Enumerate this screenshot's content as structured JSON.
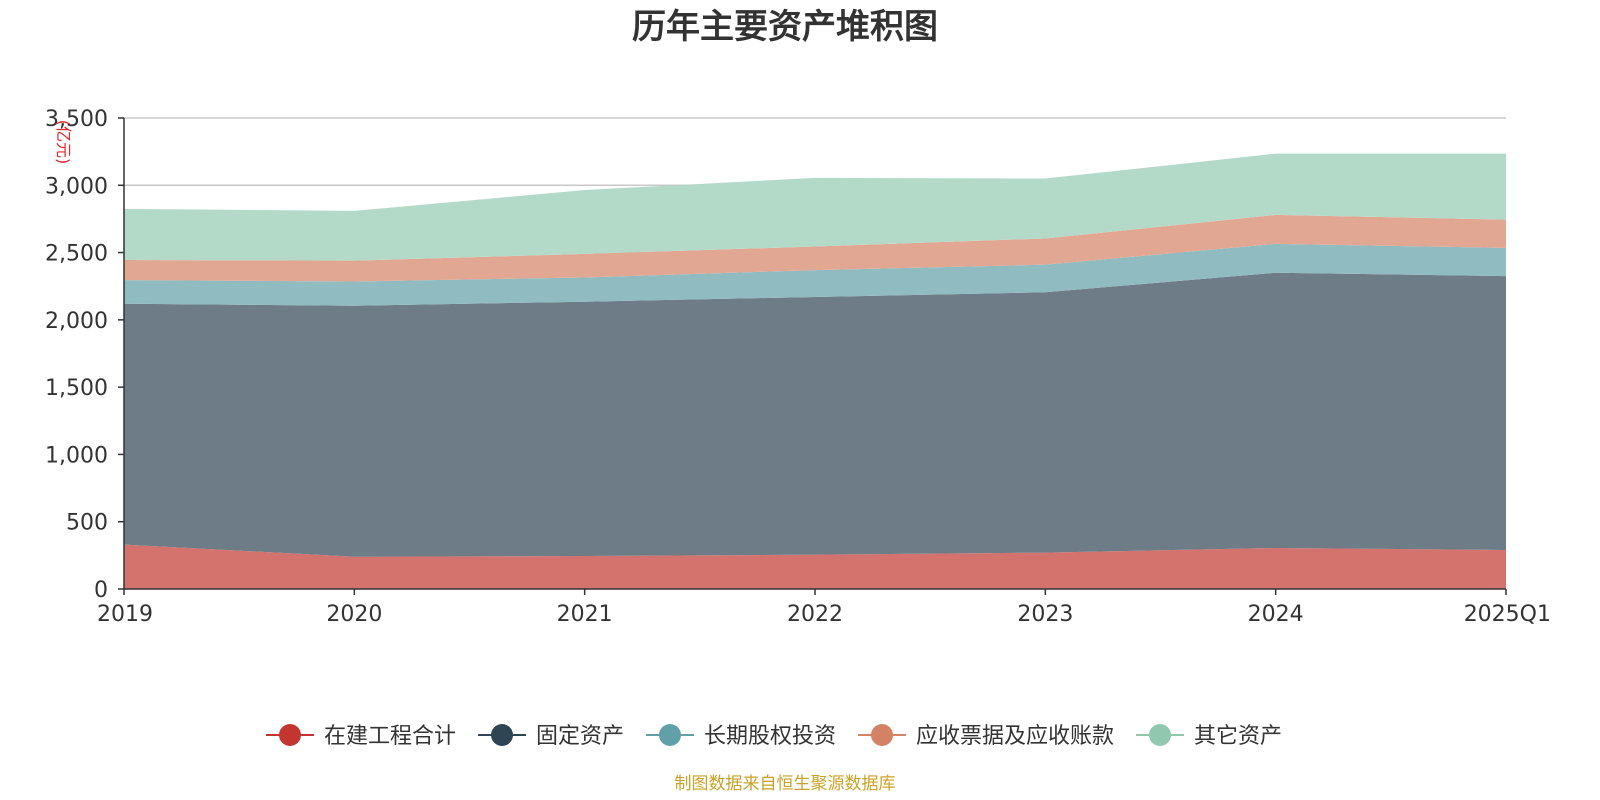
{
  "chart_data": {
    "type": "area",
    "stacked": true,
    "title": "历年主要资产堆积图",
    "y_unit": "(亿元)",
    "source": "制图数据来自恒生聚源数据库",
    "categories": [
      "2019",
      "2020",
      "2021",
      "2022",
      "2023",
      "2024",
      "2025Q1"
    ],
    "ylim": [
      0,
      3500
    ],
    "yticks": [
      0,
      500,
      1000,
      1500,
      2000,
      2500,
      3000,
      3500
    ],
    "ytick_labels": [
      "0",
      "500",
      "1,000",
      "1,500",
      "2,000",
      "2,500",
      "3,000",
      "3,500"
    ],
    "grid": true,
    "legend_position": "bottom",
    "series": [
      {
        "name": "在建工程合计",
        "color": "#c23531",
        "fill": "#d4726e",
        "values": [
          330,
          240,
          245,
          255,
          270,
          305,
          290
        ]
      },
      {
        "name": "固定资产",
        "color": "#2f4554",
        "fill": "#6e7c87",
        "values": [
          1790,
          1865,
          1890,
          1915,
          1935,
          2045,
          2035
        ]
      },
      {
        "name": "长期股权投资",
        "color": "#61a0a8",
        "fill": "#90bbc0",
        "values": [
          175,
          180,
          180,
          200,
          205,
          215,
          210
        ]
      },
      {
        "name": "应收票据及应收账款",
        "color": "#d48265",
        "fill": "#e2a793",
        "values": [
          150,
          155,
          175,
          175,
          195,
          215,
          210
        ]
      },
      {
        "name": "其它资产",
        "color": "#91c7ae",
        "fill": "#b3dac8",
        "values": [
          380,
          370,
          475,
          510,
          445,
          455,
          490
        ]
      }
    ]
  }
}
